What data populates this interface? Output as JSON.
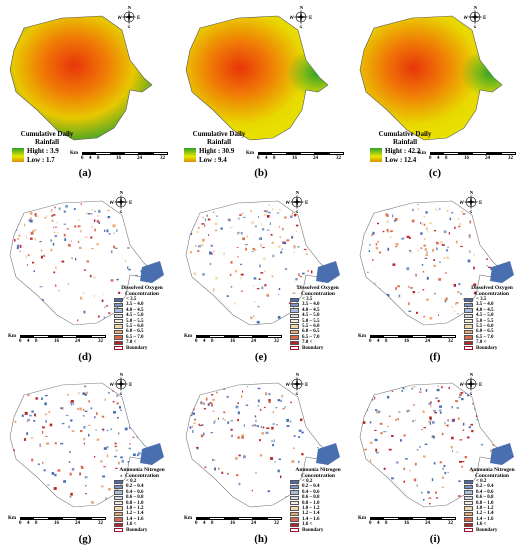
{
  "rainfall_panels": [
    {
      "letter": "(a)",
      "title": "Cumulative Daily Rainfall",
      "high": "Hight : 3.9",
      "low": "Low : 1.7",
      "edge": "#2ba02b"
    },
    {
      "letter": "(b)",
      "title": "Cumulative Daily Rainfall",
      "high": "Hight : 30.9",
      "low": "Low : 9.4",
      "edge": "#e8e800"
    },
    {
      "letter": "(c)",
      "title": "Cumulative Daily Rainfall",
      "high": "Hight : 42.2",
      "low": "Low : 12.4",
      "edge": "#e8e800"
    }
  ],
  "do_panels": [
    {
      "letter": "(d)"
    },
    {
      "letter": "(e)"
    },
    {
      "letter": "(f)"
    }
  ],
  "an_panels": [
    {
      "letter": "(g)"
    },
    {
      "letter": "(h)"
    },
    {
      "letter": "(i)"
    }
  ],
  "do_legend": {
    "title": "Dissolved Oxygen Concentration",
    "classes": [
      {
        "label": "< 3.5",
        "color": "#4a6fb0"
      },
      {
        "label": "3.5 – 4.0",
        "color": "#7c98c8"
      },
      {
        "label": "4.0 – 4.5",
        "color": "#a9bcd9"
      },
      {
        "label": "4.5 – 5.0",
        "color": "#d7dde6"
      },
      {
        "label": "5.0 – 5.5",
        "color": "#f4efd8"
      },
      {
        "label": "5.5 – 6.0",
        "color": "#f2d7a8"
      },
      {
        "label": "6.0 – 6.5",
        "color": "#e8a878"
      },
      {
        "label": "6.5 – 7.0",
        "color": "#d96a4e"
      },
      {
        "label": "7.0 <",
        "color": "#b8242a"
      }
    ],
    "boundary": "Boundary"
  },
  "an_legend": {
    "title": "Ammonia Nitrogen Concentration",
    "classes": [
      {
        "label": "< 0.2",
        "color": "#4a6fb0"
      },
      {
        "label": "0.2 – 0.4",
        "color": "#7c98c8"
      },
      {
        "label": "0.4 – 0.6",
        "color": "#a9bcd9"
      },
      {
        "label": "0.6 – 0.8",
        "color": "#d7dde6"
      },
      {
        "label": "0.8 – 1.0",
        "color": "#f4efd8"
      },
      {
        "label": "1.0 – 1.2",
        "color": "#f2d7a8"
      },
      {
        "label": "1.2 – 1.4",
        "color": "#e8a878"
      },
      {
        "label": "1.4 – 1.6",
        "color": "#d96a4e"
      },
      {
        "label": "1.6 <",
        "color": "#b8242a"
      }
    ],
    "boundary": "Boundary"
  },
  "scale_bar": {
    "unit": "Km",
    "ticks": [
      "0",
      "4",
      "8",
      "16",
      "24",
      "32"
    ]
  },
  "compass": {
    "n": "N",
    "s": "S",
    "e": "E",
    "w": "W"
  },
  "colors": {
    "rain_center": "#e8360a",
    "rain_mid": "#f0a000",
    "rain_edge": "#e8e800",
    "rain_green": "#2ba02b",
    "map_fill": "#ffffff",
    "map_outline": "#555555",
    "sea_blue": "#4a6fb0"
  }
}
